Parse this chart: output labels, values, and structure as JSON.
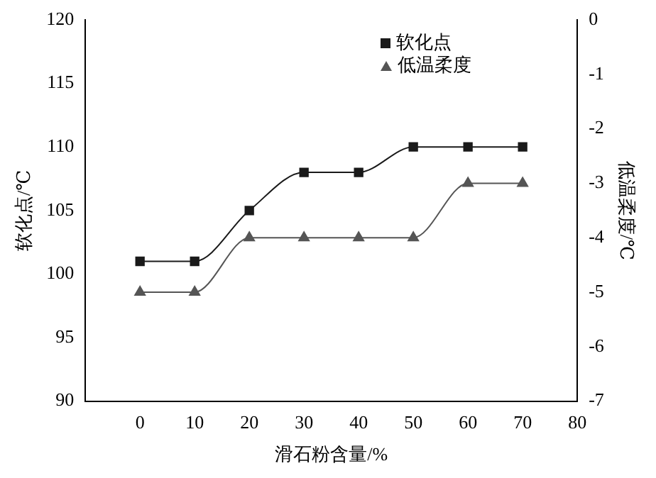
{
  "chart_data": {
    "type": "line",
    "xlabel": "滑石粉含量/%",
    "ylabel": "软化点/℃",
    "y2label": "低温柔度/℃",
    "x": [
      0,
      10,
      20,
      30,
      40,
      50,
      60,
      70
    ],
    "series": [
      {
        "name": "软化点",
        "color": "#1a1a1a",
        "marker": "square",
        "values": [
          101,
          101,
          105,
          108,
          108,
          110,
          110,
          110
        ]
      },
      {
        "name": "低温柔度",
        "color": "#555555",
        "marker": "triangle",
        "axis": "y2",
        "values": [
          -5,
          -5,
          -4,
          -4,
          -4,
          -4,
          -3,
          -3
        ]
      }
    ],
    "xlim": [
      -10,
      80
    ],
    "xticks": [
      0,
      10,
      20,
      30,
      40,
      50,
      60,
      70,
      80
    ],
    "ylim": [
      90,
      120
    ],
    "yticks": [
      90,
      95,
      100,
      105,
      110,
      115,
      120
    ],
    "y2lim": [
      -7,
      0
    ],
    "y2ticks": [
      -7,
      -6,
      -5,
      -4,
      -3,
      -2,
      -1,
      0
    ],
    "grid": false,
    "legend": "top right",
    "line_style": "solid"
  }
}
